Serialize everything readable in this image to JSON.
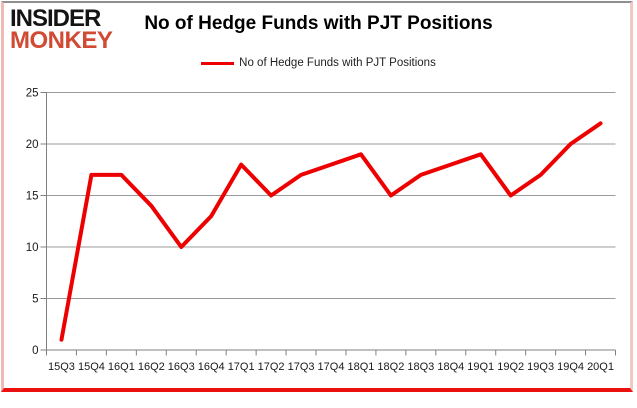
{
  "branding": {
    "line1": "INSIDER",
    "line2": "MONKEY",
    "line2_color": "#d14a33"
  },
  "header": {
    "title": "No of Hedge Funds with PJT Positions"
  },
  "legend": {
    "label": "No of Hedge Funds with PJT Positions"
  },
  "chart_data": {
    "type": "line",
    "title": "No of Hedge Funds with PJT Positions",
    "categories": [
      "15Q3",
      "15Q4",
      "16Q1",
      "16Q2",
      "16Q3",
      "16Q4",
      "17Q1",
      "17Q2",
      "17Q3",
      "17Q4",
      "18Q1",
      "18Q2",
      "18Q3",
      "18Q4",
      "19Q1",
      "19Q2",
      "19Q3",
      "19Q4",
      "20Q1"
    ],
    "values": [
      1,
      17,
      17,
      14,
      10,
      13,
      18,
      15,
      17,
      18,
      19,
      15,
      17,
      18,
      19,
      15,
      17,
      20,
      22
    ],
    "series_name": "No of Hedge Funds with PJT Positions",
    "xlabel": "",
    "ylabel": "",
    "ylim": [
      0,
      25
    ],
    "yticks": [
      0,
      5,
      10,
      15,
      20,
      25
    ],
    "grid": true,
    "legend_position": "top",
    "colors": {
      "line": "#ee0000",
      "grid": "#9b9b9b",
      "axis": "#808080",
      "tick_text": "#1a1a1a"
    }
  },
  "frame": {
    "border_top": "#8f8f8f",
    "border_sides": "#efb9b4",
    "border_bottom": "#ec1111"
  }
}
